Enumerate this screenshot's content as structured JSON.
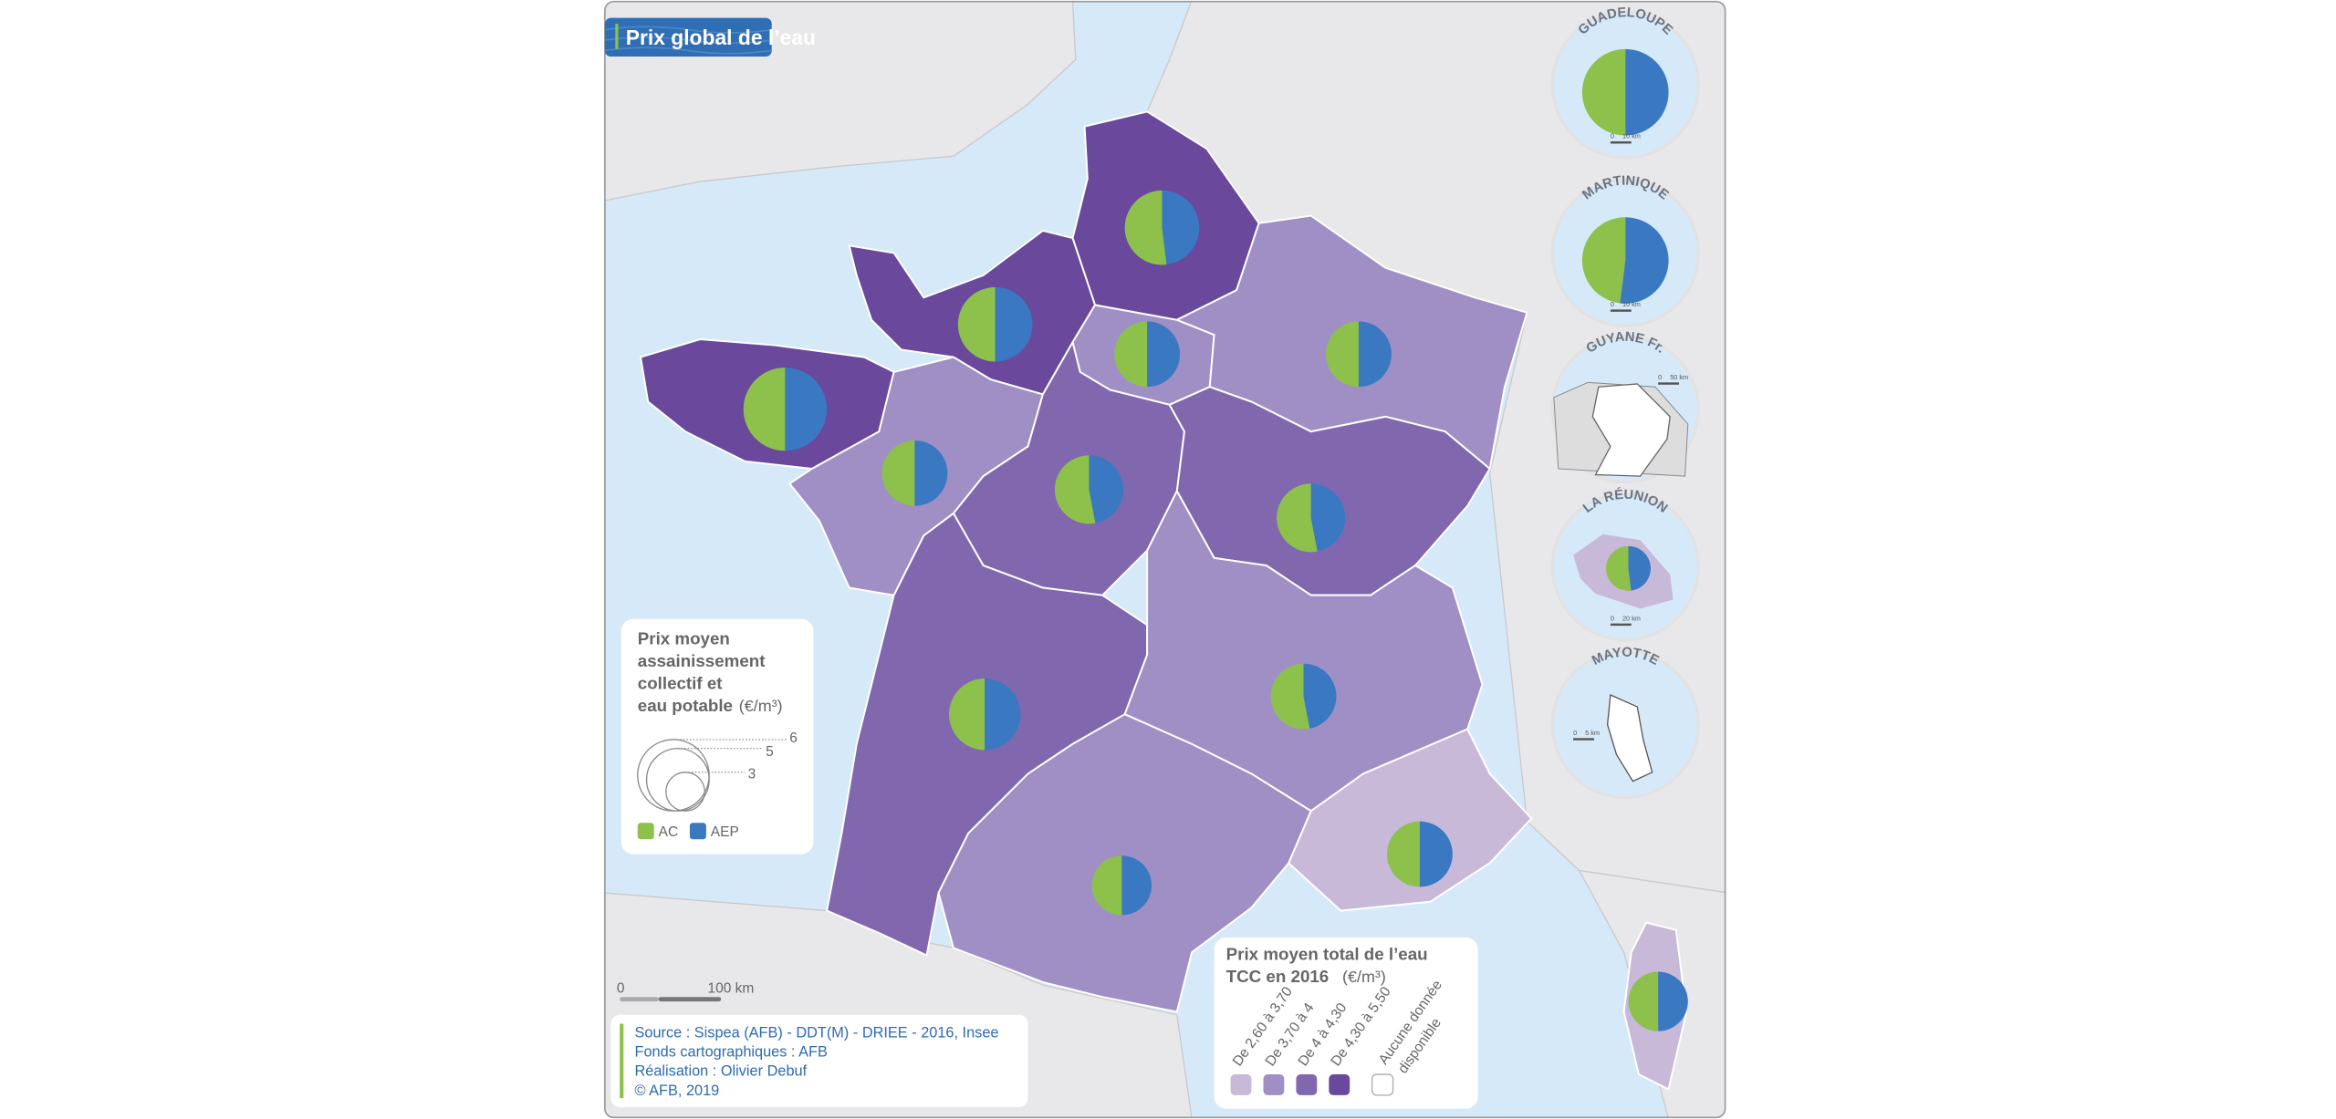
{
  "title": "Prix global de l’eau",
  "colors": {
    "sea": "#d6e9f8",
    "land": "#e8e8ea",
    "ac": "#8dc14b",
    "aep": "#3a78c2",
    "classes": [
      "#c8b9d9",
      "#a08fc5",
      "#8168ae",
      "#6a489b"
    ],
    "no_data": "#ffffff"
  },
  "pie_legend": {
    "title_lines": [
      "Prix moyen",
      "assainissement",
      "collectif et",
      "eau potable"
    ],
    "unit": "(€/m³)",
    "sizes": [
      "6",
      "5",
      "3"
    ],
    "ac_label": "AC",
    "aep_label": "AEP"
  },
  "class_legend": {
    "title_line1": "Prix moyen total de l’eau",
    "title_line2": "TCC en 2016",
    "unit": "(€/m³)",
    "classes": [
      "De 2,60 à 3,70",
      "De 3,70 à 4",
      "De 4 à 4,30",
      "De 4,30 à 5,50"
    ],
    "no_data_line1": "Aucune donnée",
    "no_data_line2": "disponible"
  },
  "scale_bar": {
    "start": "0",
    "end": "100 km"
  },
  "source": {
    "lines": [
      "Source : Sispea (AFB) - DDT(M) - DRIEE - 2016, Insee",
      "Fonds cartographiques : AFB",
      "Réalisation : Olivier Debuf",
      "© AFB, 2019"
    ]
  },
  "regions": [
    {
      "price_class": 3,
      "ac_share": 0.52
    },
    {
      "price_class": 3,
      "ac_share": 0.5
    },
    {
      "price_class": 3,
      "ac_share": 0.5
    },
    {
      "price_class": 1,
      "ac_share": 0.5
    },
    {
      "price_class": 1,
      "ac_share": 0.5
    },
    {
      "price_class": 1,
      "ac_share": 0.5
    },
    {
      "price_class": 2,
      "ac_share": 0.53
    },
    {
      "price_class": 2,
      "ac_share": 0.53
    },
    {
      "price_class": 2,
      "ac_share": 0.5
    },
    {
      "price_class": 1,
      "ac_share": 0.53
    },
    {
      "price_class": 1,
      "ac_share": 0.5
    },
    {
      "price_class": 0,
      "ac_share": 0.5
    },
    {
      "price_class": 0,
      "ac_share": 0.5
    }
  ],
  "insets": [
    {
      "name": "GUADELOUPE",
      "scale": "10 km",
      "price_class": 3,
      "ac_share": 0.5
    },
    {
      "name": "MARTINIQUE",
      "scale": "10 km",
      "price_class": 3,
      "ac_share": 0.48
    },
    {
      "name": "GUYANE Fr.",
      "scale": "50 km",
      "price_class": null
    },
    {
      "name": "LA RÉUNION",
      "scale": "20 km",
      "price_class": 0,
      "ac_share": 0.52
    },
    {
      "name": "MAYOTTE",
      "scale": "5 km",
      "price_class": null
    }
  ]
}
